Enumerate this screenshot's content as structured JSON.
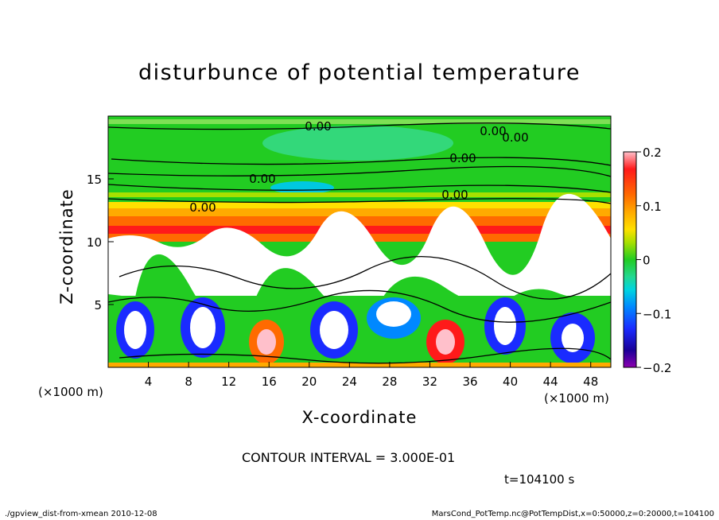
{
  "title": "disturbunce of potential temperature",
  "chart_data": {
    "type": "heatmap",
    "xlabel": "X-coordinate",
    "ylabel": "Z-coordinate",
    "x_unit_label": "(×1000 m)",
    "xlim": [
      0,
      50
    ],
    "ylim": [
      0,
      20
    ],
    "x_ticks": [
      4,
      8,
      12,
      16,
      20,
      24,
      28,
      32,
      36,
      40,
      44,
      48
    ],
    "y_ticks": [
      5,
      10,
      15
    ],
    "colorbar": {
      "range": [
        -0.2,
        0.2
      ],
      "ticks": [
        {
          "value": 0.2,
          "label": "0.2"
        },
        {
          "value": 0.1,
          "label": "0.1"
        },
        {
          "value": 0,
          "label": "0"
        },
        {
          "value": -0.1,
          "label": "−0.1"
        },
        {
          "value": -0.2,
          "label": "−0.2"
        }
      ],
      "colors": [
        "#ffb6c1",
        "#ff1a1a",
        "#ff6a00",
        "#ffaa00",
        "#ffe000",
        "#a8e000",
        "#22cc22",
        "#22d890",
        "#00d4e0",
        "#0088ff",
        "#1a2bff",
        "#1a0098",
        "#8c00b0"
      ]
    },
    "contour_labels": [
      "0.00",
      "0.00",
      "0.00",
      "0.00",
      "0.00",
      "0.00",
      "0.00"
    ],
    "colors": {
      "zero_band": "#22cc22",
      "positive_band": "#ff6a00",
      "strong_positive": "#ff1a1a",
      "negative_core": "#1a2bff",
      "turbulent_region": "#ffffff"
    }
  },
  "contour_interval": "CONTOUR INTERVAL = 3.000E-01",
  "time_label": "t=104100 s",
  "footer": {
    "left": "./gpview_dist-from-xmean  2010-12-08",
    "right": "MarsCond_PotTemp.nc@PotTempDist,x=0:50000,z=0:20000,t=104100"
  }
}
